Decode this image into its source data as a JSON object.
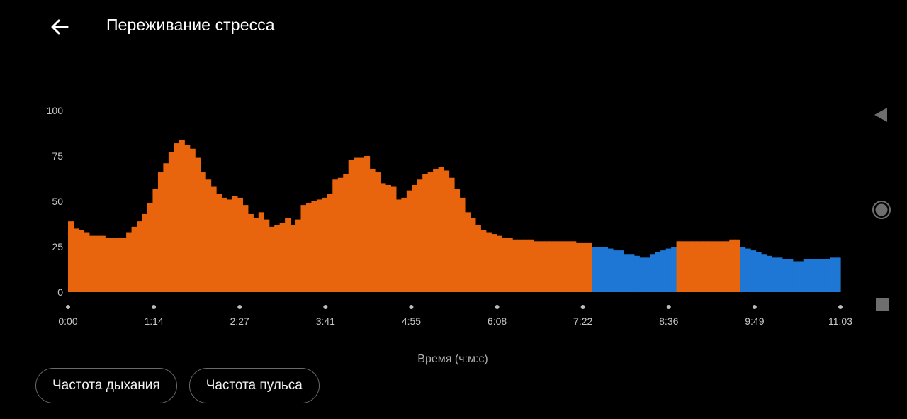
{
  "header": {
    "title": "Переживание стресса"
  },
  "chart_data": {
    "type": "bar",
    "x_unit": "time (ч:м:с)",
    "xlabel": "Время (ч:м:с)",
    "ylabel": "",
    "ylim": [
      0,
      100
    ],
    "y_ticks": [
      "100",
      "75",
      "50",
      "25",
      "0"
    ],
    "x_ticks": [
      "0:00",
      "1:14",
      "2:27",
      "3:41",
      "4:55",
      "6:08",
      "7:22",
      "8:36",
      "9:49",
      "11:03"
    ],
    "colors": {
      "stress": "#E8650E",
      "rest": "#1E77D4"
    },
    "segments": [
      {
        "type": "stress",
        "values": [
          39,
          35,
          34,
          33,
          31,
          31,
          31,
          30,
          30,
          30,
          30,
          33,
          36,
          39,
          43,
          49,
          57,
          66,
          71,
          77,
          82,
          84,
          81,
          79,
          74,
          66,
          62,
          58,
          54,
          52,
          51,
          53,
          52,
          48,
          43,
          41,
          44,
          40,
          36,
          37,
          38,
          41,
          37,
          40,
          48,
          49,
          50,
          51,
          52,
          54,
          62,
          63,
          65,
          73,
          74,
          74,
          75,
          68,
          66,
          60,
          59,
          58,
          51,
          52,
          56,
          59,
          62,
          65,
          66,
          68,
          69,
          67,
          63,
          57,
          52,
          44,
          41,
          37,
          34,
          33,
          32,
          31,
          30,
          30,
          29,
          29,
          29,
          29,
          28,
          28,
          28,
          28,
          28,
          28,
          28,
          28,
          27,
          27,
          27
        ]
      },
      {
        "type": "rest",
        "values": [
          25,
          25,
          25,
          24,
          23,
          23,
          21,
          21,
          20,
          19,
          19,
          21,
          22,
          23,
          24,
          25
        ]
      },
      {
        "type": "stress",
        "values": [
          28,
          28,
          28,
          28,
          28,
          28,
          28,
          28,
          28,
          28,
          29,
          29
        ]
      },
      {
        "type": "rest",
        "values": [
          25,
          24,
          23,
          22,
          21,
          20,
          19,
          19,
          18,
          18,
          17,
          17,
          18,
          18,
          18,
          18,
          18,
          19,
          19
        ]
      }
    ]
  },
  "chips": [
    {
      "label": "Частота дыхания"
    },
    {
      "label": "Частота пульса"
    }
  ]
}
